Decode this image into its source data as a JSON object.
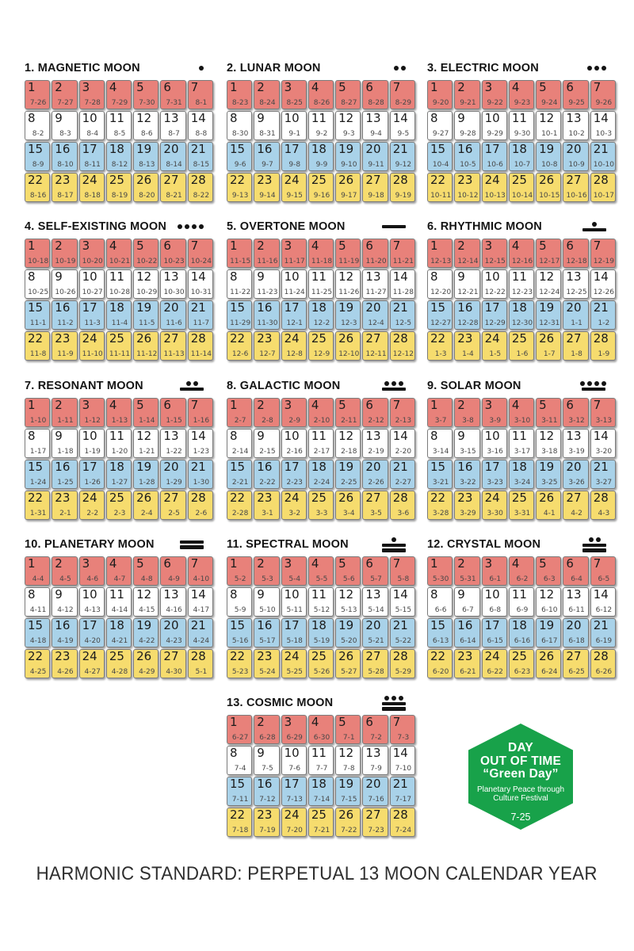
{
  "footer": {
    "text": "HARMONIC STANDARD: PERPETUAL 13 MOON CALENDAR YEAR"
  },
  "colors": {
    "week_row_1_red": "#E8817A",
    "week_row_2_white": "#FFFFFF",
    "week_row_3_blue": "#A9D2E9",
    "week_row_4_yellow": "#F6DC6E",
    "hexagon_green": "#18A24A",
    "tone_glyph_black": "#141414"
  },
  "day_numbers": [
    "1",
    "2",
    "3",
    "4",
    "5",
    "6",
    "7",
    "8",
    "9",
    "10",
    "11",
    "12",
    "13",
    "14",
    "15",
    "16",
    "17",
    "18",
    "19",
    "20",
    "21",
    "22",
    "23",
    "24",
    "25",
    "26",
    "27",
    "28"
  ],
  "moons": [
    {
      "title": "1. MAGNETIC MOON",
      "glyph": {
        "dots": 1,
        "bars": 0
      },
      "dates": [
        "7-26",
        "7-27",
        "7-28",
        "7-29",
        "7-30",
        "7-31",
        "8-1",
        "8-2",
        "8-3",
        "8-4",
        "8-5",
        "8-6",
        "8-7",
        "8-8",
        "8-9",
        "8-10",
        "8-11",
        "8-12",
        "8-13",
        "8-14",
        "8-15",
        "8-16",
        "8-17",
        "8-18",
        "8-19",
        "8-20",
        "8-21",
        "8-22"
      ]
    },
    {
      "title": "2. LUNAR MOON",
      "glyph": {
        "dots": 2,
        "bars": 0
      },
      "dates": [
        "8-23",
        "8-24",
        "8-25",
        "8-26",
        "8-27",
        "8-28",
        "8-29",
        "8-30",
        "8-31",
        "9-1",
        "9-2",
        "9-3",
        "9-4",
        "9-5",
        "9-6",
        "9-7",
        "9-8",
        "9-9",
        "9-10",
        "9-11",
        "9-12",
        "9-13",
        "9-14",
        "9-15",
        "9-16",
        "9-17",
        "9-18",
        "9-19"
      ]
    },
    {
      "title": "3. ELECTRIC MOON",
      "glyph": {
        "dots": 3,
        "bars": 0
      },
      "dates": [
        "9-20",
        "9-21",
        "9-22",
        "9-23",
        "9-24",
        "9-25",
        "9-26",
        "9-27",
        "9-28",
        "9-29",
        "9-30",
        "10-1",
        "10-2",
        "10-3",
        "10-4",
        "10-5",
        "10-6",
        "10-7",
        "10-8",
        "10-9",
        "10-10",
        "10-11",
        "10-12",
        "10-13",
        "10-14",
        "10-15",
        "10-16",
        "10-17"
      ]
    },
    {
      "title": "4. SELF-EXISTING MOON",
      "glyph": {
        "dots": 4,
        "bars": 0
      },
      "dates": [
        "10-18",
        "10-19",
        "10-20",
        "10-21",
        "10-22",
        "10-23",
        "10-24",
        "10-25",
        "10-26",
        "10-27",
        "10-28",
        "10-29",
        "10-30",
        "10-31",
        "11-1",
        "11-2",
        "11-3",
        "11-4",
        "11-5",
        "11-6",
        "11-7",
        "11-8",
        "11-9",
        "11-10",
        "11-11",
        "11-12",
        "11-13",
        "11-14"
      ]
    },
    {
      "title": "5. OVERTONE MOON",
      "glyph": {
        "dots": 0,
        "bars": 1
      },
      "dates": [
        "11-15",
        "11-16",
        "11-17",
        "11-18",
        "11-19",
        "11-20",
        "11-21",
        "11-22",
        "11-23",
        "11-24",
        "11-25",
        "11-26",
        "11-27",
        "11-28",
        "11-29",
        "11-30",
        "12-1",
        "12-2",
        "12-3",
        "12-4",
        "12-5",
        "12-6",
        "12-7",
        "12-8",
        "12-9",
        "12-10",
        "12-11",
        "12-12"
      ]
    },
    {
      "title": "6. RHYTHMIC MOON",
      "glyph": {
        "dots": 1,
        "bars": 1
      },
      "dates": [
        "12-13",
        "12-14",
        "12-15",
        "12-16",
        "12-17",
        "12-18",
        "12-19",
        "12-20",
        "12-21",
        "12-22",
        "12-23",
        "12-24",
        "12-25",
        "12-26",
        "12-27",
        "12-28",
        "12-29",
        "12-30",
        "12-31",
        "1-1",
        "1-2",
        "1-3",
        "1-4",
        "1-5",
        "1-6",
        "1-7",
        "1-8",
        "1-9"
      ]
    },
    {
      "title": "7. RESONANT MOON",
      "glyph": {
        "dots": 2,
        "bars": 1
      },
      "dates": [
        "1-10",
        "1-11",
        "1-12",
        "1-13",
        "1-14",
        "1-15",
        "1-16",
        "1-17",
        "1-18",
        "1-19",
        "1-20",
        "1-21",
        "1-22",
        "1-23",
        "1-24",
        "1-25",
        "1-26",
        "1-27",
        "1-28",
        "1-29",
        "1-30",
        "1-31",
        "2-1",
        "2-2",
        "2-3",
        "2-4",
        "2-5",
        "2-6"
      ]
    },
    {
      "title": "8. GALACTIC MOON",
      "glyph": {
        "dots": 3,
        "bars": 1
      },
      "dates": [
        "2-7",
        "2-8",
        "2-9",
        "2-10",
        "2-11",
        "2-12",
        "2-13",
        "2-14",
        "2-15",
        "2-16",
        "2-17",
        "2-18",
        "2-19",
        "2-20",
        "2-21",
        "2-22",
        "2-23",
        "2-24",
        "2-25",
        "2-26",
        "2-27",
        "2-28",
        "3-1",
        "3-2",
        "3-3",
        "3-4",
        "3-5",
        "3-6"
      ]
    },
    {
      "title": "9. SOLAR MOON",
      "glyph": {
        "dots": 4,
        "bars": 1
      },
      "dates": [
        "3-7",
        "3-8",
        "3-9",
        "3-10",
        "3-11",
        "3-12",
        "3-13",
        "3-14",
        "3-15",
        "3-16",
        "3-17",
        "3-18",
        "3-19",
        "3-20",
        "3-21",
        "3-22",
        "3-23",
        "3-24",
        "3-25",
        "3-26",
        "3-27",
        "3-28",
        "3-29",
        "3-30",
        "3-31",
        "4-1",
        "4-2",
        "4-3"
      ]
    },
    {
      "title": "10. PLANETARY MOON",
      "glyph": {
        "dots": 0,
        "bars": 2
      },
      "dates": [
        "4-4",
        "4-5",
        "4-6",
        "4-7",
        "4-8",
        "4-9",
        "4-10",
        "4-11",
        "4-12",
        "4-13",
        "4-14",
        "4-15",
        "4-16",
        "4-17",
        "4-18",
        "4-19",
        "4-20",
        "4-21",
        "4-22",
        "4-23",
        "4-24",
        "4-25",
        "4-26",
        "4-27",
        "4-28",
        "4-29",
        "4-30",
        "5-1"
      ]
    },
    {
      "title": "11. SPECTRAL MOON",
      "glyph": {
        "dots": 1,
        "bars": 2
      },
      "dates": [
        "5-2",
        "5-3",
        "5-4",
        "5-5",
        "5-6",
        "5-7",
        "5-8",
        "5-9",
        "5-10",
        "5-11",
        "5-12",
        "5-13",
        "5-14",
        "5-15",
        "5-16",
        "5-17",
        "5-18",
        "5-19",
        "5-20",
        "5-21",
        "5-22",
        "5-23",
        "5-24",
        "5-25",
        "5-26",
        "5-27",
        "5-28",
        "5-29"
      ]
    },
    {
      "title": "12. CRYSTAL MOON",
      "glyph": {
        "dots": 2,
        "bars": 2
      },
      "dates": [
        "5-30",
        "5-31",
        "6-1",
        "6-2",
        "6-3",
        "6-4",
        "6-5",
        "6-6",
        "6-7",
        "6-8",
        "6-9",
        "6-10",
        "6-11",
        "6-12",
        "6-13",
        "6-14",
        "6-15",
        "6-16",
        "6-17",
        "6-18",
        "6-19",
        "6-20",
        "6-21",
        "6-22",
        "6-23",
        "6-24",
        "6-25",
        "6-26"
      ]
    },
    {
      "title": "13. COSMIC MOON",
      "glyph": {
        "dots": 3,
        "bars": 2
      },
      "dates": [
        "6-27",
        "6-28",
        "6-29",
        "6-30",
        "7-1",
        "7-2",
        "7-3",
        "7-4",
        "7-5",
        "7-6",
        "7-7",
        "7-8",
        "7-9",
        "7-10",
        "7-11",
        "7-12",
        "7-13",
        "7-14",
        "7-15",
        "7-16",
        "7-17",
        "7-18",
        "7-19",
        "7-20",
        "7-21",
        "7-22",
        "7-23",
        "7-24"
      ]
    }
  ],
  "day_out_of_time": {
    "title_line1": "DAY",
    "title_line2": "OUT OF TIME",
    "title_line3": "“Green Day”",
    "subtitle_line1": "Planetary Peace through",
    "subtitle_line2": "Culture Festival",
    "date": "7-25"
  }
}
